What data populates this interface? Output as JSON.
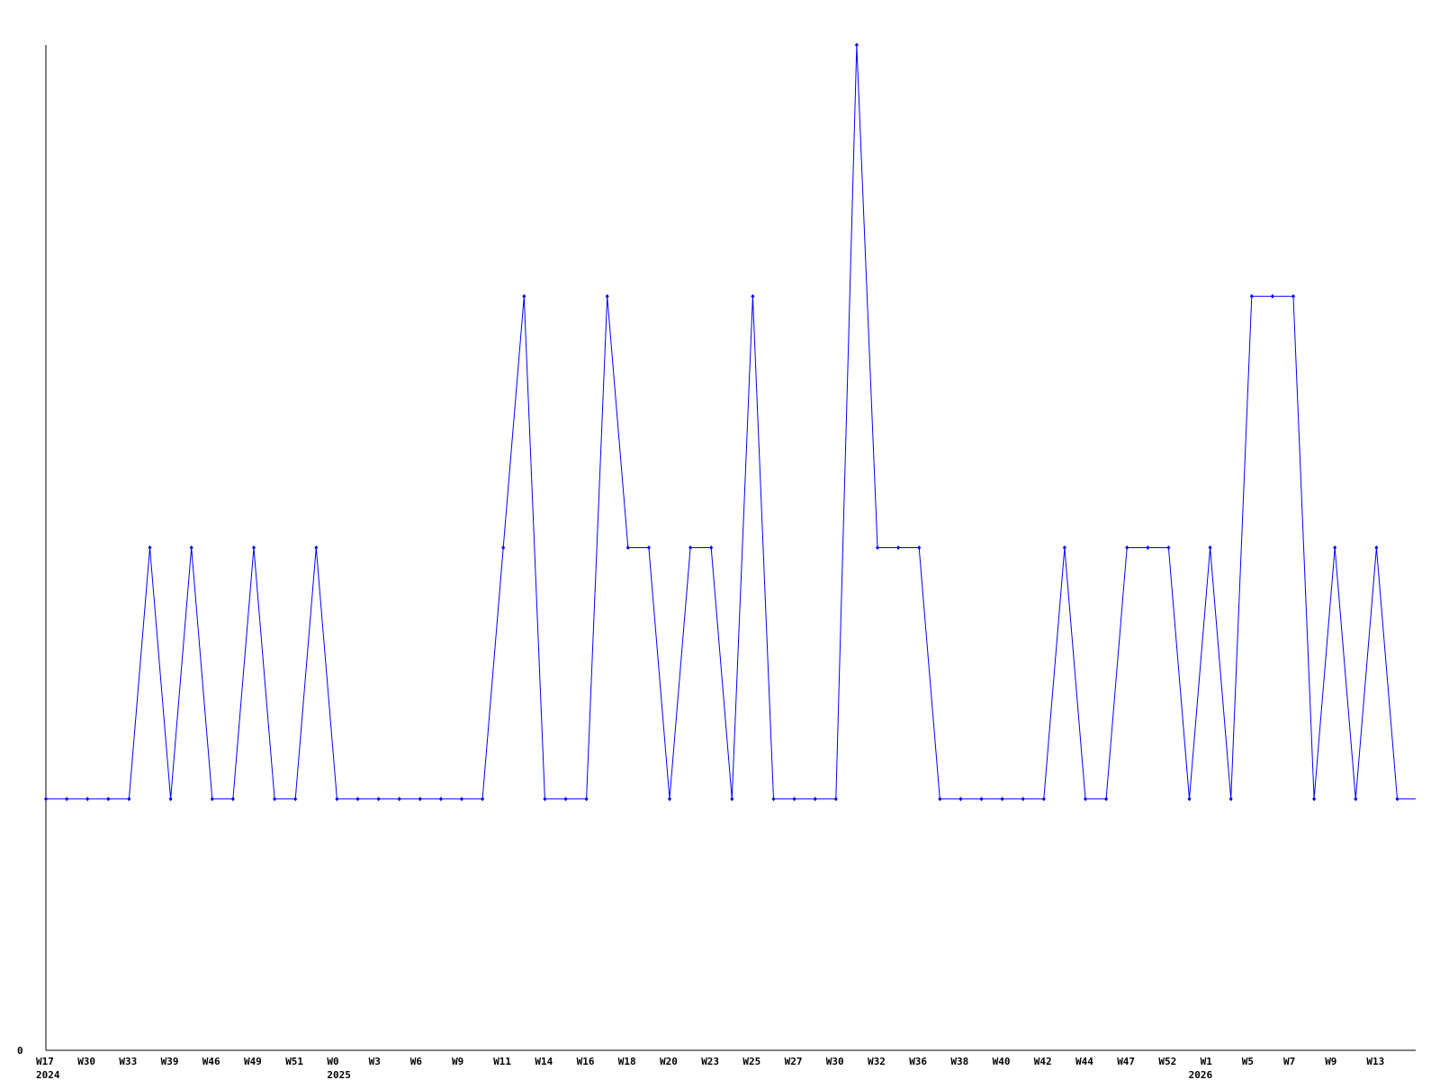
{
  "chart_data": {
    "type": "line",
    "title": "",
    "xlabel": "",
    "ylabel": "",
    "ylim": [
      0,
      4
    ],
    "y_tick_labels": [
      "0"
    ],
    "grid": false,
    "line_color": "#0000ff",
    "x_tick_labels": [
      "W17",
      "W30",
      "W33",
      "W39",
      "W46",
      "W49",
      "W51",
      "W0",
      "W3",
      "W6",
      "W9",
      "W11",
      "W14",
      "W16",
      "W18",
      "W20",
      "W23",
      "W25",
      "W27",
      "W30",
      "W32",
      "W36",
      "W38",
      "W40",
      "W42",
      "W44",
      "W47",
      "W52",
      "W1",
      "W5",
      "W7",
      "W9",
      "W13"
    ],
    "year_labels": [
      {
        "label": "2024",
        "at_tick": 0
      },
      {
        "label": "2025",
        "at_tick": 7
      },
      {
        "label": "2026",
        "at_tick": 28
      }
    ],
    "values": [
      1,
      1,
      1,
      1,
      1,
      2,
      1,
      2,
      1,
      1,
      2,
      1,
      1,
      2,
      1,
      1,
      1,
      1,
      1,
      1,
      1,
      1,
      2,
      3,
      1,
      1,
      1,
      3,
      2,
      2,
      1,
      2,
      2,
      1,
      3,
      1,
      1,
      1,
      1,
      4,
      2,
      2,
      2,
      1,
      1,
      1,
      1,
      1,
      1,
      2,
      1,
      1,
      2,
      2,
      2,
      1,
      2,
      1,
      3,
      3,
      3,
      1,
      2,
      1,
      2,
      1
    ]
  }
}
